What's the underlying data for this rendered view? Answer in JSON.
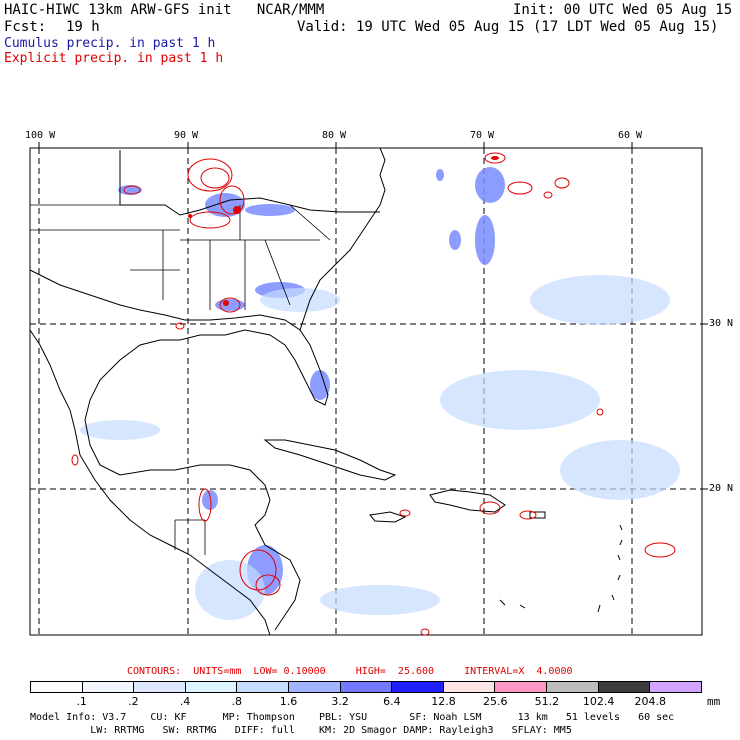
{
  "header": {
    "title": "HAIC-HIWC 13km ARW-GFS init   NCAR/MMM",
    "init": "Init: 00 UTC Wed 05 Aug 15",
    "fcst_label": "Fcst:",
    "fcst_value": "19 h",
    "valid": "Valid: 19 UTC Wed 05 Aug 15 (17 LDT Wed 05 Aug 15)",
    "legend_cumulus": "Cumulus precip. in past 1 h",
    "legend_explicit": "Explicit precip. in past 1 h"
  },
  "lon_labels": [
    "100 W",
    "90 W",
    "80 W",
    "70 W",
    "60 W"
  ],
  "lat_labels": [
    "30 N",
    "20 N"
  ],
  "contours_line": {
    "label": "CONTOURS:  UNITS=mm  LOW= 0.10000     HIGH=  25.600     INTERVAL=X  4.0000"
  },
  "color_scale": {
    "unit": "mm",
    "ticks": [
      ".1",
      ".2",
      ".4",
      ".8",
      "1.6",
      "3.2",
      "6.4",
      "12.8",
      "25.6",
      "51.2",
      "102.4",
      "204.8"
    ],
    "colors": [
      "#ffffff",
      "#f2f6ff",
      "#dde8ff",
      "#dcf4ff",
      "#c6dcff",
      "#a0b4ff",
      "#7478ff",
      "#2020ff",
      "#ffe6e6",
      "#ff96c8",
      "#bdbdbd",
      "#3c3c3c",
      "#d2a4ff"
    ]
  },
  "model_info": {
    "line1": "Model Info: V3.7    CU: KF      MP: Thompson    PBL: YSU       SF: Noah LSM      13 km   51 levels   60 sec",
    "line2": "          LW: RRTMG   SW: RRTMG   DIFF: full    KM: 2D Smagor DAMP: Rayleigh3   SFLAY: MM5"
  }
}
